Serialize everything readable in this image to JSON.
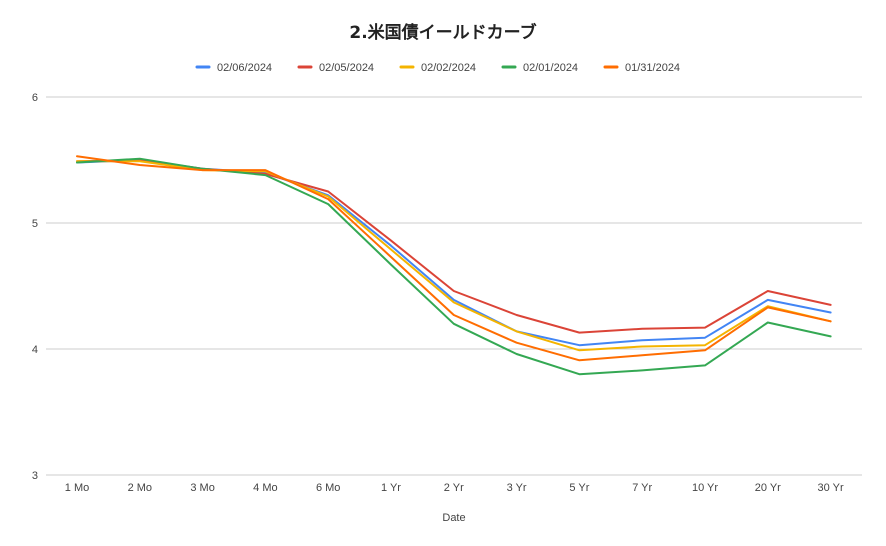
{
  "chart_data": {
    "type": "line",
    "title": "2.米国債イールドカーブ",
    "xlabel": "Date",
    "ylabel": "",
    "ylim": [
      3,
      6
    ],
    "yticks": [
      "3",
      "4",
      "5",
      "6"
    ],
    "grid": true,
    "legend_position": "top",
    "categories": [
      "1 Mo",
      "2 Mo",
      "3 Mo",
      "4 Mo",
      "6 Mo",
      "1 Yr",
      "2 Yr",
      "3 Yr",
      "5 Yr",
      "7 Yr",
      "10 Yr",
      "20 Yr",
      "30 Yr"
    ],
    "series": [
      {
        "name": "02/06/2024",
        "color": "#4285f4",
        "values": [
          5.48,
          5.5,
          5.43,
          5.4,
          5.22,
          4.82,
          4.39,
          4.14,
          4.03,
          4.07,
          4.09,
          4.39,
          4.29
        ]
      },
      {
        "name": "02/05/2024",
        "color": "#db4437",
        "values": [
          5.49,
          5.5,
          5.43,
          5.39,
          5.25,
          4.86,
          4.46,
          4.27,
          4.13,
          4.16,
          4.17,
          4.46,
          4.35
        ]
      },
      {
        "name": "02/02/2024",
        "color": "#f4b400",
        "values": [
          5.49,
          5.49,
          5.42,
          5.41,
          5.21,
          4.79,
          4.37,
          4.14,
          3.99,
          4.02,
          4.03,
          4.34,
          4.22
        ]
      },
      {
        "name": "02/01/2024",
        "color": "#34a853",
        "values": [
          5.48,
          5.51,
          5.43,
          5.38,
          5.15,
          4.67,
          4.2,
          3.96,
          3.8,
          3.83,
          3.87,
          4.21,
          4.1
        ]
      },
      {
        "name": "01/31/2024",
        "color": "#ff6d01",
        "values": [
          5.53,
          5.46,
          5.42,
          5.42,
          5.19,
          4.73,
          4.27,
          4.05,
          3.91,
          3.95,
          3.99,
          4.33,
          4.22
        ]
      }
    ]
  }
}
